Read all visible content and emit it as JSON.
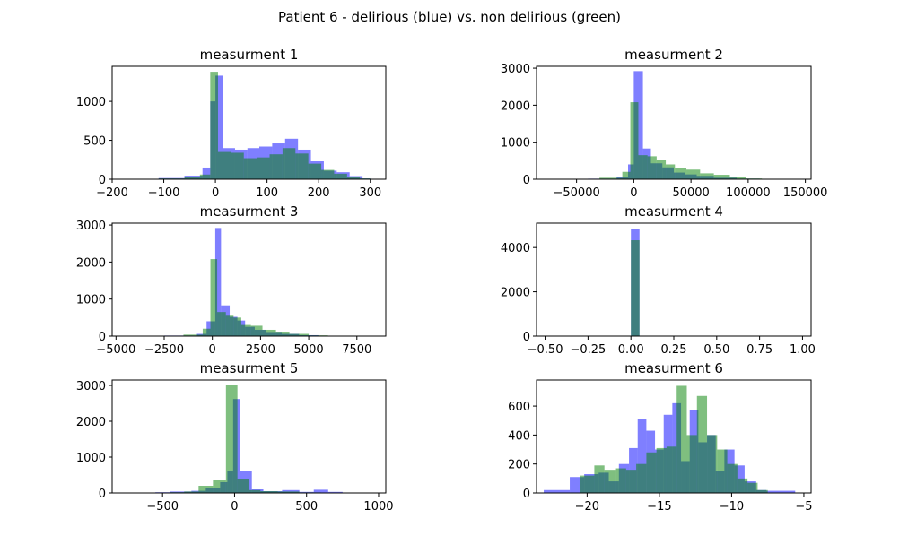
{
  "figure_title": "Patient 6 - delirious (blue) vs. non delirious (green)",
  "colors": {
    "series_a": "#0000ff",
    "series_b": "#008000",
    "axis": "#000000",
    "background": "#ffffff"
  },
  "chart_data": [
    {
      "type": "histogram",
      "title": "measurment 1",
      "xlim": [
        -200,
        330
      ],
      "ylim": [
        0,
        1450
      ],
      "xticks": [
        -200,
        -100,
        0,
        100,
        200,
        300
      ],
      "yticks": [
        0,
        500,
        1000
      ],
      "series": [
        {
          "color": "blue",
          "bins": [
            [
              -185,
              -150,
              2
            ],
            [
              -150,
              -110,
              5
            ],
            [
              -110,
              -60,
              15
            ],
            [
              -60,
              -25,
              45
            ],
            [
              -25,
              -10,
              150
            ],
            [
              -10,
              0,
              1000
            ],
            [
              0,
              14,
              1330
            ],
            [
              14,
              38,
              400
            ],
            [
              38,
              62,
              380
            ],
            [
              62,
              85,
              400
            ],
            [
              85,
              110,
              420
            ],
            [
              110,
              135,
              460
            ],
            [
              135,
              160,
              520
            ],
            [
              160,
              185,
              380
            ],
            [
              185,
              210,
              230
            ],
            [
              210,
              235,
              110
            ],
            [
              235,
              260,
              90
            ],
            [
              260,
              285,
              40
            ],
            [
              285,
              300,
              10
            ]
          ]
        },
        {
          "color": "green",
          "bins": [
            [
              -160,
              -110,
              3
            ],
            [
              -110,
              -60,
              10
            ],
            [
              -60,
              -30,
              30
            ],
            [
              -30,
              -10,
              60
            ],
            [
              -10,
              5,
              1380
            ],
            [
              5,
              30,
              350
            ],
            [
              30,
              55,
              340
            ],
            [
              55,
              80,
              270
            ],
            [
              80,
              105,
              280
            ],
            [
              105,
              130,
              320
            ],
            [
              130,
              155,
              400
            ],
            [
              155,
              180,
              330
            ],
            [
              180,
              205,
              200
            ],
            [
              205,
              230,
              120
            ],
            [
              230,
              255,
              70
            ],
            [
              255,
              280,
              30
            ],
            [
              280,
              300,
              10
            ]
          ]
        }
      ]
    },
    {
      "type": "histogram",
      "title": "measurment 2",
      "xlim": [
        -85000,
        155000
      ],
      "ylim": [
        0,
        3050
      ],
      "xticks": [
        -50000,
        0,
        50000,
        100000,
        150000
      ],
      "yticks": [
        0,
        1000,
        2000,
        3000
      ],
      "series": [
        {
          "color": "blue",
          "bins": [
            [
              -40000,
              -15000,
              15
            ],
            [
              -15000,
              -5000,
              60
            ],
            [
              -5000,
              0,
              400
            ],
            [
              0,
              8000,
              2920
            ],
            [
              8000,
              15000,
              830
            ],
            [
              15000,
              25000,
              430
            ],
            [
              25000,
              35000,
              320
            ],
            [
              35000,
              45000,
              180
            ],
            [
              45000,
              55000,
              130
            ],
            [
              55000,
              70000,
              90
            ],
            [
              70000,
              90000,
              40
            ],
            [
              90000,
              110000,
              15
            ]
          ]
        },
        {
          "color": "green",
          "bins": [
            [
              -30000,
              -10000,
              40
            ],
            [
              -10000,
              -3000,
              200
            ],
            [
              -3000,
              4000,
              2080
            ],
            [
              4000,
              12000,
              650
            ],
            [
              12000,
              20000,
              620
            ],
            [
              20000,
              28000,
              520
            ],
            [
              28000,
              36000,
              400
            ],
            [
              36000,
              46000,
              300
            ],
            [
              46000,
              58000,
              260
            ],
            [
              58000,
              70000,
              160
            ],
            [
              70000,
              84000,
              120
            ],
            [
              84000,
              98000,
              70
            ],
            [
              98000,
              112000,
              20
            ]
          ]
        }
      ]
    },
    {
      "type": "histogram",
      "title": "measurment 3",
      "xlim": [
        -5200,
        9000
      ],
      "ylim": [
        0,
        3050
      ],
      "xticks": [
        -5000,
        -2500,
        0,
        2500,
        5000,
        7500
      ],
      "yticks": [
        0,
        1000,
        2000,
        3000
      ],
      "series": [
        {
          "color": "blue",
          "bins": [
            [
              -2500,
              -800,
              15
            ],
            [
              -800,
              -300,
              60
            ],
            [
              -300,
              150,
              400
            ],
            [
              150,
              450,
              2920
            ],
            [
              450,
              900,
              830
            ],
            [
              900,
              1300,
              520
            ],
            [
              1300,
              1700,
              420
            ],
            [
              1700,
              2200,
              250
            ],
            [
              2200,
              2800,
              170
            ],
            [
              2800,
              3600,
              110
            ],
            [
              3600,
              4500,
              60
            ],
            [
              4500,
              5500,
              25
            ]
          ]
        },
        {
          "color": "green",
          "bins": [
            [
              -1500,
              -500,
              40
            ],
            [
              -500,
              -100,
              200
            ],
            [
              -100,
              250,
              2080
            ],
            [
              250,
              700,
              650
            ],
            [
              700,
              1100,
              550
            ],
            [
              1100,
              1500,
              500
            ],
            [
              1500,
              2000,
              300
            ],
            [
              2000,
              2600,
              280
            ],
            [
              2600,
              3300,
              170
            ],
            [
              3300,
              4000,
              120
            ],
            [
              4000,
              5000,
              60
            ],
            [
              5000,
              6000,
              20
            ]
          ]
        }
      ]
    },
    {
      "type": "histogram",
      "title": "measurment 4",
      "xlim": [
        -0.55,
        1.05
      ],
      "ylim": [
        0,
        5100
      ],
      "xticks": [
        -0.5,
        -0.25,
        0.0,
        0.25,
        0.5,
        0.75,
        1.0
      ],
      "xtick_labels": [
        "−0.50",
        "−0.25",
        "0.00",
        "0.25",
        "0.50",
        "0.75",
        "1.00"
      ],
      "yticks": [
        0,
        2000,
        4000
      ],
      "series": [
        {
          "color": "blue",
          "bins": [
            [
              0.0,
              0.05,
              4840
            ]
          ]
        },
        {
          "color": "green",
          "bins": [
            [
              0.0,
              0.05,
              4330
            ]
          ]
        }
      ]
    },
    {
      "type": "histogram",
      "title": "measurment 5",
      "xlim": [
        -850,
        1050
      ],
      "ylim": [
        0,
        3150
      ],
      "xticks": [
        -500,
        0,
        500,
        1000
      ],
      "yticks": [
        0,
        1000,
        2000,
        3000
      ],
      "series": [
        {
          "color": "blue",
          "bins": [
            [
              -550,
              -450,
              20
            ],
            [
              -450,
              -300,
              40
            ],
            [
              -300,
              -200,
              60
            ],
            [
              -200,
              -100,
              150
            ],
            [
              -100,
              -50,
              300
            ],
            [
              -50,
              -10,
              600
            ],
            [
              -10,
              40,
              2620
            ],
            [
              40,
              120,
              600
            ],
            [
              120,
              200,
              100
            ],
            [
              200,
              330,
              50
            ],
            [
              330,
              450,
              80
            ],
            [
              450,
              550,
              30
            ],
            [
              550,
              650,
              90
            ],
            [
              650,
              750,
              30
            ]
          ]
        },
        {
          "color": "green",
          "bins": [
            [
              -450,
              -350,
              20
            ],
            [
              -350,
              -250,
              40
            ],
            [
              -250,
              -150,
              200
            ],
            [
              -150,
              -60,
              350
            ],
            [
              -60,
              20,
              3000
            ],
            [
              20,
              100,
              400
            ],
            [
              100,
              180,
              80
            ],
            [
              180,
              300,
              50
            ],
            [
              300,
              450,
              40
            ],
            [
              450,
              600,
              15
            ]
          ]
        }
      ]
    },
    {
      "type": "histogram",
      "title": "measurment 6",
      "xlim": [
        -23.5,
        -4.5
      ],
      "ylim": [
        0,
        780
      ],
      "xticks": [
        -20,
        -15,
        -10,
        -5
      ],
      "xtick_labels": [
        "−20",
        "−15",
        "−10",
        "−5"
      ],
      "yticks": [
        0,
        200,
        400,
        600
      ],
      "series": [
        {
          "color": "blue",
          "bins": [
            [
              -23,
              -21.2,
              20
            ],
            [
              -21.2,
              -20.2,
              110
            ],
            [
              -20.2,
              -19.2,
              130
            ],
            [
              -19.2,
              -18.5,
              140
            ],
            [
              -18.5,
              -17.8,
              80
            ],
            [
              -17.8,
              -17.1,
              200
            ],
            [
              -17.1,
              -16.5,
              310
            ],
            [
              -16.5,
              -15.9,
              510
            ],
            [
              -15.9,
              -15.3,
              430
            ],
            [
              -15.3,
              -14.7,
              300
            ],
            [
              -14.7,
              -14.1,
              540
            ],
            [
              -14.1,
              -13.5,
              620
            ],
            [
              -13.5,
              -12.9,
              220
            ],
            [
              -12.9,
              -12.3,
              570
            ],
            [
              -12.3,
              -11.7,
              350
            ],
            [
              -11.7,
              -11.1,
              400
            ],
            [
              -11.1,
              -10.5,
              150
            ],
            [
              -10.5,
              -9.8,
              300
            ],
            [
              -9.8,
              -9.1,
              190
            ],
            [
              -9.1,
              -8.3,
              80
            ],
            [
              -8.3,
              -7.6,
              20
            ],
            [
              -7.6,
              -5.6,
              15
            ]
          ]
        },
        {
          "color": "green",
          "bins": [
            [
              -20.5,
              -19.5,
              120
            ],
            [
              -19.5,
              -18.8,
              190
            ],
            [
              -18.8,
              -18.0,
              160
            ],
            [
              -18.0,
              -17.3,
              170
            ],
            [
              -17.3,
              -16.6,
              160
            ],
            [
              -16.6,
              -15.9,
              200
            ],
            [
              -15.9,
              -15.2,
              280
            ],
            [
              -15.2,
              -14.5,
              310
            ],
            [
              -14.5,
              -13.8,
              320
            ],
            [
              -13.8,
              -13.1,
              740
            ],
            [
              -13.1,
              -12.4,
              400
            ],
            [
              -12.4,
              -11.7,
              670
            ],
            [
              -11.7,
              -11.0,
              400
            ],
            [
              -11.0,
              -10.3,
              300
            ],
            [
              -10.3,
              -9.6,
              200
            ],
            [
              -9.6,
              -8.9,
              100
            ],
            [
              -8.9,
              -8.2,
              70
            ],
            [
              -8.2,
              -7.5,
              20
            ]
          ]
        }
      ]
    }
  ]
}
